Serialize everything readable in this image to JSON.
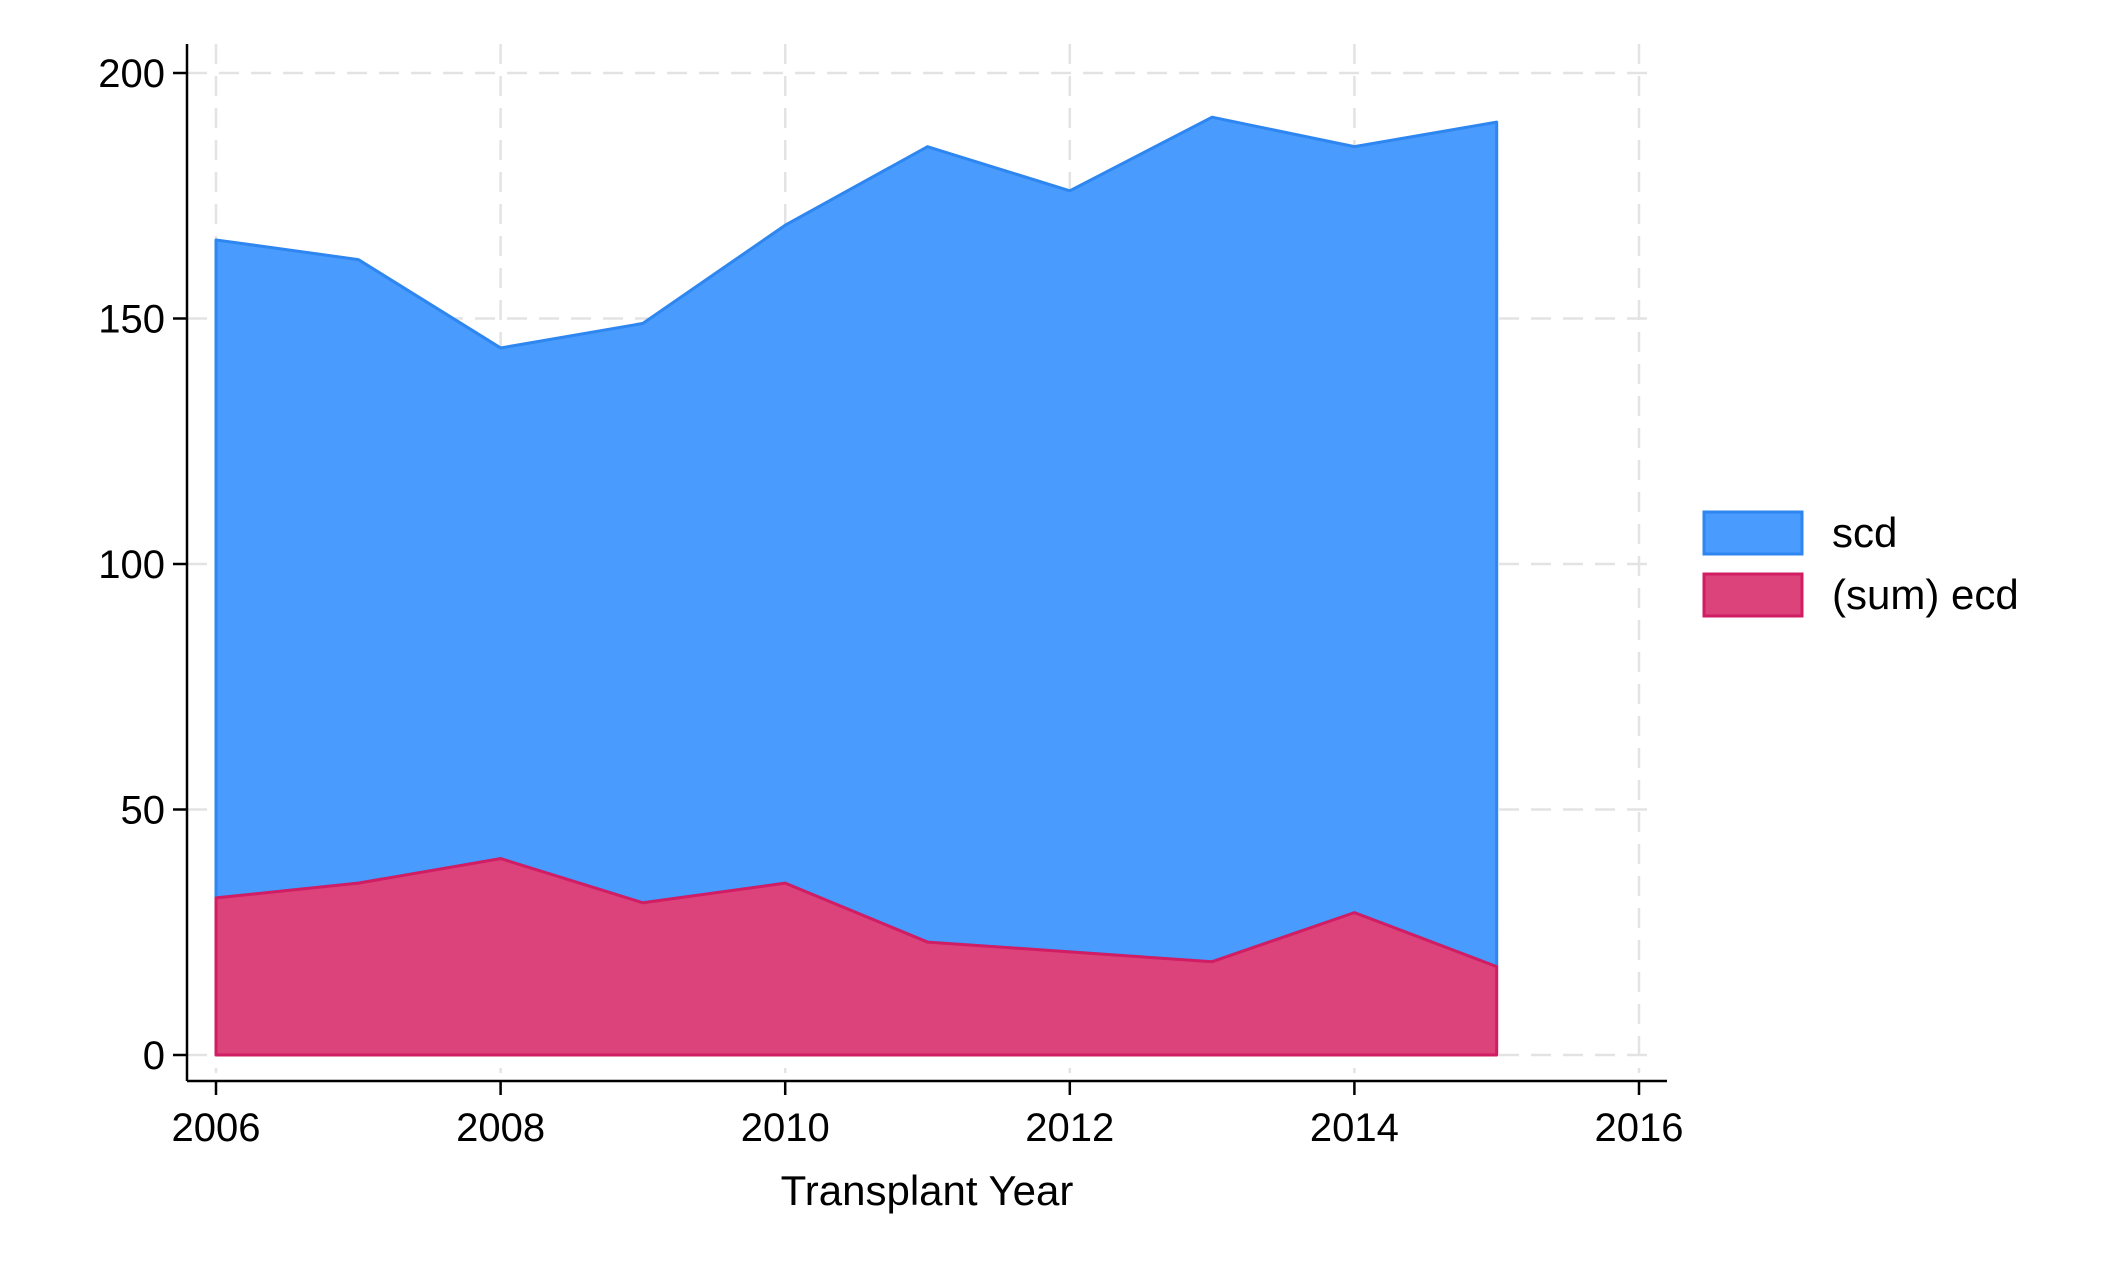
{
  "chart_data": {
    "type": "area",
    "stacked": true,
    "xlabel": "Transplant Year",
    "ylabel": "",
    "xlim": [
      2005.9,
      2016.2
    ],
    "ylim": [
      -5,
      205
    ],
    "xticks": [
      2006,
      2008,
      2010,
      2012,
      2014,
      2016
    ],
    "yticks": [
      0,
      50,
      100,
      150,
      200
    ],
    "x_tick_labels": [
      "2006",
      "2008",
      "2010",
      "2012",
      "2014",
      "2016"
    ],
    "y_tick_labels": [
      "0",
      "50",
      "100",
      "150",
      "200"
    ],
    "grid": true,
    "legend_position": "right",
    "x": [
      2006,
      2007,
      2008,
      2009,
      2010,
      2011,
      2012,
      2013,
      2014,
      2015
    ],
    "series": [
      {
        "name": "(sum) ecd",
        "color": "#dc437b",
        "line_color": "#d01d63",
        "values": [
          32,
          35,
          40,
          31,
          35,
          23,
          21,
          19,
          29,
          18
        ]
      },
      {
        "name": "scd",
        "color": "#499bfd",
        "line_color": "#2e86f0",
        "stacked_totals": [
          166,
          162,
          144,
          149,
          169,
          185,
          176,
          191,
          185,
          190
        ],
        "values": [
          134,
          127,
          104,
          118,
          134,
          162,
          155,
          172,
          156,
          172
        ]
      }
    ],
    "legend_order": [
      "scd",
      "(sum) ecd"
    ]
  }
}
